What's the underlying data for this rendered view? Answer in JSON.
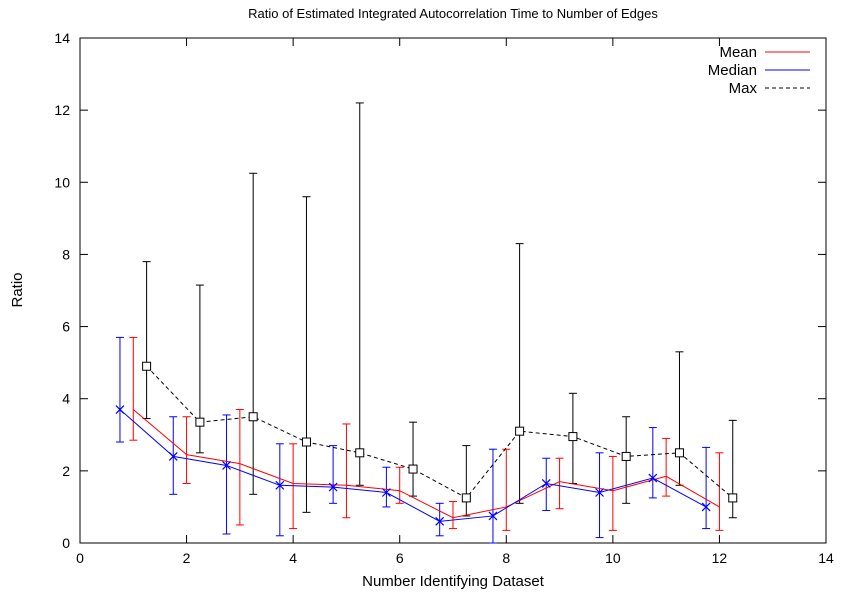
{
  "chart_data": {
    "type": "line",
    "title": "Ratio of Estimated Integrated Autocorrelation Time to Number of Edges",
    "xlabel": "Number Identifying Dataset",
    "ylabel": "Ratio",
    "xlim": [
      0,
      14
    ],
    "ylim": [
      0,
      14
    ],
    "xticks": [
      "0",
      "2",
      "4",
      "6",
      "8",
      "10",
      "12",
      "14"
    ],
    "yticks": [
      "0",
      "2",
      "4",
      "6",
      "8",
      "10",
      "12",
      "14"
    ],
    "legend_position": "top-right",
    "grid": false,
    "series": [
      {
        "name": "Mean",
        "color": "#ff0000",
        "dash": "solid",
        "marker": "none",
        "x": [
          1,
          2,
          3,
          4,
          5,
          6,
          7,
          8,
          9,
          10,
          11,
          12
        ],
        "y": [
          3.7,
          2.45,
          2.2,
          1.65,
          1.6,
          1.45,
          0.7,
          1.0,
          1.7,
          1.45,
          1.85,
          1.0
        ],
        "err_low": [
          2.85,
          1.65,
          0.5,
          0.4,
          0.7,
          1.1,
          0.4,
          0.35,
          0.95,
          0.35,
          1.3,
          0.35
        ],
        "err_high": [
          5.7,
          3.5,
          3.7,
          2.75,
          3.3,
          2.1,
          1.15,
          2.6,
          2.35,
          2.4,
          2.9,
          2.5
        ]
      },
      {
        "name": "Median",
        "color": "#0000ff",
        "dash": "solid",
        "marker": "x",
        "x": [
          0.75,
          1.75,
          2.75,
          3.75,
          4.75,
          5.75,
          6.75,
          7.75,
          8.75,
          9.75,
          10.75,
          11.75
        ],
        "y": [
          3.7,
          2.4,
          2.15,
          1.6,
          1.55,
          1.4,
          0.6,
          0.75,
          1.65,
          1.4,
          1.8,
          1.0
        ],
        "err_low": [
          2.8,
          1.35,
          0.25,
          0.2,
          1.1,
          1.0,
          0.2,
          0.0,
          0.9,
          0.15,
          1.25,
          0.4
        ],
        "err_high": [
          5.7,
          3.5,
          3.55,
          2.75,
          2.7,
          2.1,
          1.1,
          2.6,
          2.35,
          2.5,
          3.2,
          2.65
        ]
      },
      {
        "name": "Max",
        "color": "#000000",
        "dash": "dashed",
        "marker": "square",
        "x": [
          1.25,
          2.25,
          3.25,
          4.25,
          5.25,
          6.25,
          7.25,
          8.25,
          9.25,
          10.25,
          11.25,
          12.25
        ],
        "y": [
          4.9,
          3.35,
          3.5,
          2.8,
          2.5,
          2.05,
          1.25,
          3.1,
          2.95,
          2.4,
          2.5,
          1.25
        ],
        "err_low": [
          3.45,
          2.5,
          1.35,
          0.85,
          1.6,
          1.3,
          0.75,
          1.1,
          1.65,
          1.1,
          1.6,
          0.7
        ],
        "err_high": [
          7.8,
          7.15,
          10.25,
          9.6,
          12.2,
          3.35,
          2.7,
          8.3,
          4.15,
          3.5,
          5.3,
          3.4
        ]
      }
    ]
  }
}
